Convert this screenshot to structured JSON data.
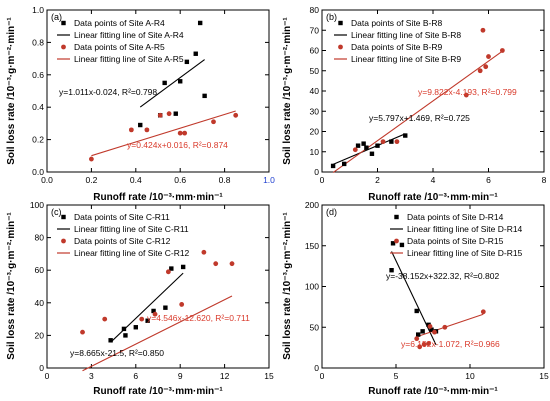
{
  "colors": {
    "black": "#000000",
    "red": "#c0392b",
    "equation_red": "#d93a2b"
  },
  "chart_data": [
    {
      "type": "scatter",
      "panel_label": "(a)",
      "xlabel": "Runoff rate /10⁻³·mm·min⁻¹",
      "ylabel": "Soil loss rate /10⁻³·g·m⁻²·min⁻¹",
      "xlim": [
        0.0,
        1.0
      ],
      "ylim": [
        0.0,
        1.0
      ],
      "x_ticks": [
        "0.0",
        "0.2",
        "0.4",
        "0.6",
        "0.8",
        "1.0"
      ],
      "y_ticks": [
        "0.0",
        "0.2",
        "0.4",
        "0.6",
        "0.8",
        "1.0"
      ],
      "grid": false,
      "legend_position": "top-left",
      "series": [
        {
          "name": "Data points of Site A-R4",
          "marker": "square",
          "color": "#000000",
          "points": [
            [
              0.42,
              0.29
            ],
            [
              0.51,
              0.35
            ],
            [
              0.53,
              0.55
            ],
            [
              0.58,
              0.36
            ],
            [
              0.6,
              0.56
            ],
            [
              0.63,
              0.68
            ],
            [
              0.67,
              0.73
            ],
            [
              0.69,
              0.92
            ],
            [
              0.71,
              0.47
            ]
          ],
          "fit": {
            "name": "Linear fitting line of Site A-R4",
            "slope": 1.011,
            "intercept": -0.024,
            "x_range": [
              0.42,
              0.71
            ],
            "equation": "y=1.011x-0.024, R²=0.798"
          }
        },
        {
          "name": "Data points of Site A-R5",
          "marker": "circle",
          "color": "#c0392b",
          "points": [
            [
              0.2,
              0.08
            ],
            [
              0.38,
              0.26
            ],
            [
              0.45,
              0.26
            ],
            [
              0.51,
              0.35
            ],
            [
              0.55,
              0.36
            ],
            [
              0.6,
              0.24
            ],
            [
              0.62,
              0.24
            ],
            [
              0.75,
              0.31
            ],
            [
              0.85,
              0.35
            ]
          ],
          "fit": {
            "name": "Linear fitting line of Site A-R5",
            "slope": 0.424,
            "intercept": 0.016,
            "x_range": [
              0.2,
              0.85
            ],
            "equation": "y=0.424x+0.016, R²=0.874"
          }
        }
      ]
    },
    {
      "type": "scatter",
      "panel_label": "(b)",
      "xlabel": "Runoff rate /10⁻³·mm·min⁻¹",
      "ylabel": "Soil loss rate /10⁻³·g·m⁻²·min⁻¹",
      "xlim": [
        0,
        8
      ],
      "ylim": [
        0,
        80
      ],
      "x_ticks": [
        "0",
        "2",
        "4",
        "6",
        "8"
      ],
      "y_ticks": [
        "0",
        "10",
        "20",
        "30",
        "40",
        "50",
        "60",
        "70",
        "80"
      ],
      "grid": false,
      "legend_position": "top-left",
      "series": [
        {
          "name": "Data points of Site B-R8",
          "marker": "square",
          "color": "#000000",
          "points": [
            [
              0.4,
              3
            ],
            [
              0.8,
              4
            ],
            [
              1.3,
              13
            ],
            [
              1.5,
              14
            ],
            [
              1.6,
              12
            ],
            [
              1.8,
              9
            ],
            [
              2.0,
              13
            ],
            [
              2.5,
              15
            ],
            [
              3.0,
              18
            ]
          ],
          "fit": {
            "name": "Linear fitting line of Site B-R8",
            "slope": 5.797,
            "intercept": 1.469,
            "x_range": [
              0.4,
              3.0
            ],
            "equation": "y=5.797x+1.469, R²=0.725"
          }
        },
        {
          "name": "Data points of Site B-R9",
          "marker": "circle",
          "color": "#c0392b",
          "points": [
            [
              1.2,
              11
            ],
            [
              2.2,
              15
            ],
            [
              2.7,
              15
            ],
            [
              5.2,
              38
            ],
            [
              5.7,
              50
            ],
            [
              5.8,
              70
            ],
            [
              5.9,
              52
            ],
            [
              6.0,
              57
            ],
            [
              6.5,
              60
            ]
          ],
          "fit": {
            "name": "Linear fitting line of Site B-R9",
            "slope": 9.822,
            "intercept": -4.193,
            "x_range": [
              0.4,
              6.5
            ],
            "equation": "y=9.822x-4.193, R²=0.799"
          }
        }
      ]
    },
    {
      "type": "scatter",
      "panel_label": "(c)",
      "xlabel": "Runoff rate /10⁻³·mm·min⁻¹",
      "ylabel": "Soil loss rate /10⁻³·g·m⁻²·min⁻¹",
      "xlim": [
        0,
        15
      ],
      "ylim": [
        0,
        100
      ],
      "x_ticks": [
        "0",
        "3",
        "6",
        "9",
        "12",
        "15"
      ],
      "y_ticks": [
        "0",
        "20",
        "40",
        "60",
        "80",
        "100"
      ],
      "grid": false,
      "legend_position": "top-left",
      "series": [
        {
          "name": "Data points of Site C-R11",
          "marker": "square",
          "color": "#000000",
          "points": [
            [
              4.3,
              17
            ],
            [
              5.2,
              24
            ],
            [
              5.3,
              20
            ],
            [
              6.0,
              25
            ],
            [
              6.8,
              29
            ],
            [
              7.2,
              35
            ],
            [
              8.0,
              37
            ],
            [
              8.4,
              61
            ],
            [
              9.2,
              62
            ]
          ],
          "fit": {
            "name": "Linear fitting line of Site C-R11",
            "slope": 8.665,
            "intercept": -21.5,
            "x_range": [
              4.3,
              9.2
            ],
            "equation": "y=8.665x-21.5, R²=0.850"
          }
        },
        {
          "name": "Data points of Site C-R12",
          "marker": "circle",
          "color": "#c0392b",
          "points": [
            [
              2.4,
              22
            ],
            [
              3.9,
              30
            ],
            [
              6.4,
              30
            ],
            [
              7.3,
              33
            ],
            [
              8.2,
              59
            ],
            [
              9.1,
              39
            ],
            [
              10.6,
              71
            ],
            [
              11.4,
              64
            ],
            [
              12.5,
              64
            ]
          ],
          "fit": {
            "name": "Linear fitting line of Site C-R12",
            "slope": 4.546,
            "intercept": -12.62,
            "x_range": [
              2.4,
              12.5
            ],
            "equation": "y=4.546x-12.620, R²=0.711"
          }
        }
      ]
    },
    {
      "type": "scatter",
      "panel_label": "(d)",
      "xlabel": "Runoff rate /10⁻³·mm·min⁻¹",
      "ylabel": "Soil loss rate /10⁻³·g·m⁻²·min⁻¹",
      "xlim": [
        0,
        15
      ],
      "ylim": [
        0,
        200
      ],
      "x_ticks": [
        "0",
        "5",
        "10",
        "15"
      ],
      "y_ticks": [
        "0",
        "50",
        "100",
        "150",
        "200"
      ],
      "grid": false,
      "legend_position": "top-right",
      "series": [
        {
          "name": "Data points of Site D-R14",
          "marker": "square",
          "color": "#000000",
          "points": [
            [
              4.7,
              120
            ],
            [
              4.8,
              153
            ],
            [
              5.4,
              151
            ],
            [
              6.4,
              70
            ],
            [
              6.5,
              41
            ],
            [
              6.8,
              45
            ],
            [
              7.2,
              53
            ],
            [
              7.4,
              47
            ],
            [
              7.7,
              45
            ]
          ],
          "fit": {
            "name": "Linear fitting line of Site D-R14",
            "slope": -38.152,
            "intercept": 322.32,
            "x_range": [
              4.7,
              7.7
            ],
            "equation": "y=-38.152x+322.32, R²=0.802"
          }
        },
        {
          "name": "Data points of Site D-R15",
          "marker": "circle",
          "color": "#c0392b",
          "points": [
            [
              6.4,
              36
            ],
            [
              6.6,
              26
            ],
            [
              6.9,
              29
            ],
            [
              7.2,
              30
            ],
            [
              7.3,
              51
            ],
            [
              7.6,
              44
            ],
            [
              8.3,
              50
            ],
            [
              10.9,
              69
            ]
          ],
          "fit": {
            "name": "Linear fitting line of Site D-R15",
            "slope": 6.152,
            "intercept": -1.072,
            "x_range": [
              6.4,
              10.9
            ],
            "equation": "y=6.152x-1.072, R²=0.966"
          }
        }
      ]
    }
  ]
}
